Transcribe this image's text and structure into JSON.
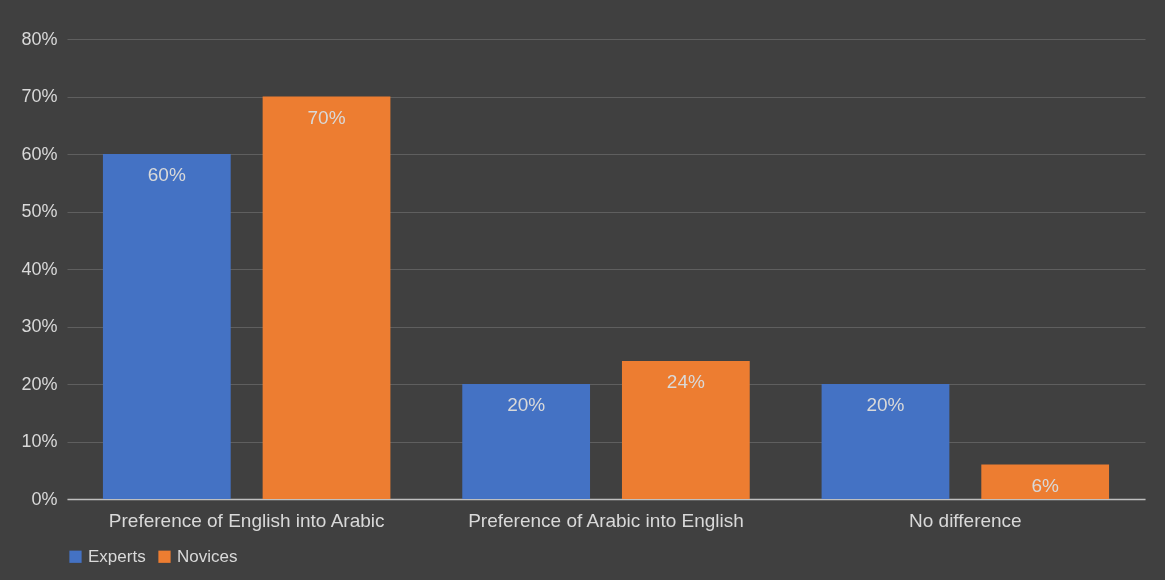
{
  "chart_data": {
    "type": "bar",
    "categories": [
      "Preference of English into Arabic",
      "Preference of Arabic into English",
      "No difference"
    ],
    "series": [
      {
        "name": "Experts",
        "color": "#4472c4",
        "values": [
          60,
          20,
          20
        ],
        "value_labels": [
          "60%",
          "20%",
          "20%"
        ]
      },
      {
        "name": "Novices",
        "color": "#ed7d31",
        "values": [
          70,
          24,
          6
        ],
        "value_labels": [
          "70%",
          "24%",
          "6%"
        ]
      }
    ],
    "ylim": [
      0,
      80
    ],
    "yticks": [
      {
        "value": 0,
        "label": "0%"
      },
      {
        "value": 10,
        "label": "10%"
      },
      {
        "value": 20,
        "label": "20%"
      },
      {
        "value": 30,
        "label": "30%"
      },
      {
        "value": 40,
        "label": "40%"
      },
      {
        "value": 50,
        "label": "50%"
      },
      {
        "value": 60,
        "label": "60%"
      },
      {
        "value": 70,
        "label": "70%"
      },
      {
        "value": 80,
        "label": "80%"
      }
    ],
    "grid": "y",
    "legend": "bottom"
  }
}
